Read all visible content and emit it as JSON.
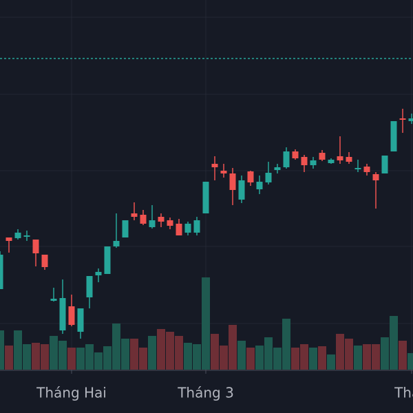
{
  "chart_data": {
    "type": "candlestick",
    "categories": [
      null,
      null,
      null,
      null,
      null,
      null,
      null,
      null,
      "Tháng Hai",
      null,
      null,
      null,
      null,
      null,
      null,
      null,
      null,
      null,
      null,
      null,
      null,
      null,
      null,
      "Tháng 3",
      null,
      null,
      null,
      null,
      null,
      null,
      null,
      null,
      null,
      null,
      null,
      null,
      null,
      null,
      null,
      null,
      null,
      null,
      null,
      null,
      null,
      null,
      "Thán"
    ],
    "open": [
      117,
      192,
      191,
      193,
      189,
      167,
      100,
      57,
      92,
      55,
      105,
      137,
      139,
      179,
      192,
      227,
      225,
      207,
      222,
      217,
      212,
      199,
      199,
      227,
      299,
      289,
      285,
      247,
      288,
      262,
      272,
      290,
      294,
      317,
      309,
      297,
      315,
      300,
      310,
      309,
      291,
      295,
      284,
      285,
      317,
      365,
      361
    ],
    "high": [
      172,
      192,
      204,
      202,
      189,
      167,
      119,
      131,
      109,
      89,
      136,
      147,
      179,
      227,
      217,
      243,
      232,
      239,
      227,
      221,
      219,
      215,
      222,
      273,
      310,
      299,
      293,
      282,
      289,
      282,
      302,
      299,
      323,
      320,
      312,
      309,
      319,
      307,
      339,
      316,
      305,
      299,
      287,
      311,
      361,
      379,
      372
    ],
    "low": [
      117,
      170,
      189,
      187,
      150,
      145,
      99,
      52,
      63,
      45,
      89,
      127,
      139,
      177,
      192,
      217,
      210,
      205,
      207,
      204,
      195,
      195,
      195,
      227,
      275,
      279,
      239,
      242,
      267,
      255,
      269,
      285,
      292,
      305,
      287,
      292,
      303,
      299,
      299,
      299,
      287,
      282,
      234,
      285,
      317,
      344,
      357
    ],
    "close": [
      167,
      187,
      199,
      195,
      169,
      149,
      103,
      104,
      65,
      89,
      136,
      142,
      179,
      187,
      217,
      222,
      212,
      217,
      215,
      209,
      195,
      212,
      217,
      273,
      294,
      285,
      261,
      275,
      272,
      273,
      286,
      294,
      317,
      307,
      297,
      304,
      305,
      305,
      304,
      302,
      293,
      287,
      275,
      311,
      361,
      363,
      365
    ],
    "volume": [
      57,
      35,
      57,
      37,
      39,
      37,
      49,
      42,
      32,
      32,
      37,
      25,
      34,
      67,
      45,
      45,
      32,
      49,
      59,
      55,
      49,
      39,
      37,
      134,
      52,
      35,
      65,
      42,
      32,
      35,
      47,
      32,
      74,
      32,
      37,
      32,
      34,
      22,
      52,
      45,
      35,
      37,
      37,
      47,
      78,
      42,
      24
    ],
    "ylim": [
      0,
      537
    ],
    "up_color": "#26a69a",
    "down_color": "#ef5350",
    "volume_up_color": "#1f5a50",
    "volume_down_color": "#6e2f36",
    "price_line": {
      "value": 452,
      "color": "#26a69a"
    }
  }
}
